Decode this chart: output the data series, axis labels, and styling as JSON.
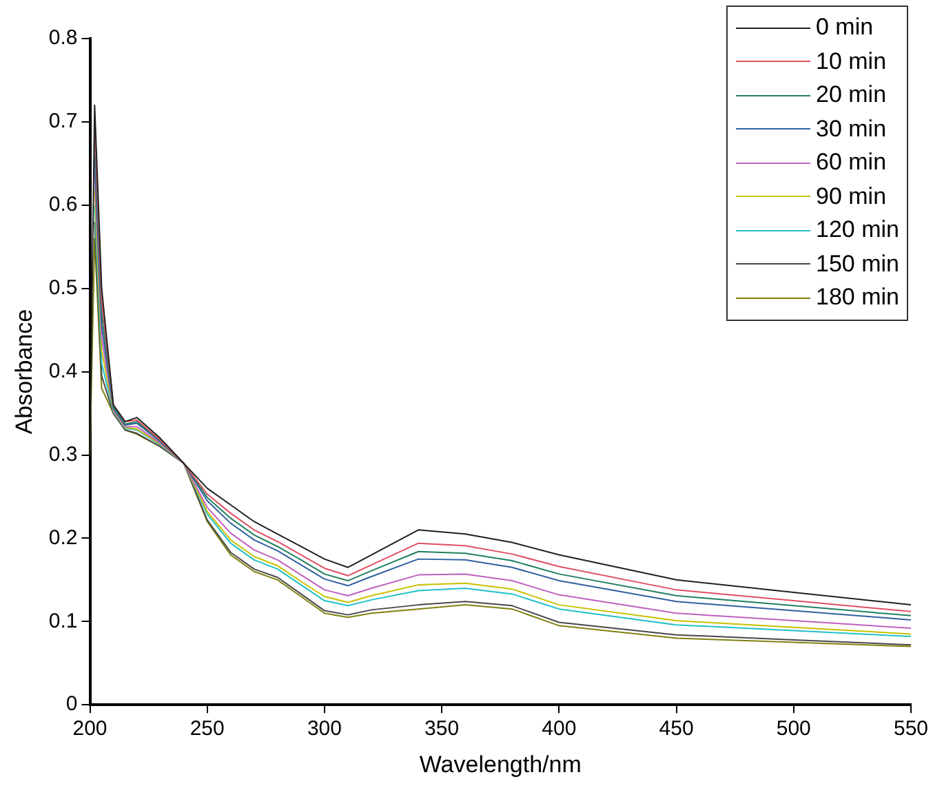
{
  "chart_data": {
    "type": "line",
    "xlabel": "Wavelength/nm",
    "ylabel": "Absorbance",
    "x": [
      200,
      202,
      205,
      210,
      215,
      220,
      230,
      240,
      250,
      260,
      270,
      280,
      290,
      300,
      310,
      320,
      340,
      360,
      380,
      400,
      450,
      500,
      550
    ],
    "xlim": [
      200,
      550
    ],
    "xticks": [
      200,
      250,
      300,
      350,
      400,
      450,
      500,
      550
    ],
    "ylim": [
      0,
      0.8
    ],
    "yticks": [
      0,
      0.1,
      0.2,
      0.3,
      0.4,
      0.5,
      0.6,
      0.7,
      0.8
    ],
    "grid": false,
    "legend": "top right",
    "marker": "none",
    "line_style": "solid",
    "series": [
      {
        "name": "0 min",
        "color": "#202020",
        "values": [
          0.3,
          0.72,
          0.5,
          0.36,
          0.34,
          0.345,
          0.32,
          0.29,
          0.26,
          0.24,
          0.22,
          0.205,
          0.19,
          0.175,
          0.165,
          0.18,
          0.21,
          0.205,
          0.195,
          0.18,
          0.15,
          0.135,
          0.12
        ]
      },
      {
        "name": "10 min",
        "color": "#e05060",
        "values": [
          null,
          0.7,
          0.485,
          0.36,
          0.34,
          0.342,
          0.318,
          0.29,
          0.253,
          0.23,
          0.21,
          0.196,
          0.18,
          0.164,
          0.155,
          0.168,
          0.194,
          0.191,
          0.181,
          0.166,
          0.138,
          0.125,
          0.112
        ]
      },
      {
        "name": "20 min",
        "color": "#208060",
        "values": [
          null,
          0.68,
          0.47,
          0.357,
          0.337,
          0.34,
          0.317,
          0.29,
          0.249,
          0.224,
          0.204,
          0.19,
          0.174,
          0.157,
          0.149,
          0.161,
          0.184,
          0.182,
          0.173,
          0.157,
          0.131,
          0.119,
          0.107
        ]
      },
      {
        "name": "30 min",
        "color": "#3060a0",
        "values": [
          null,
          0.66,
          0.455,
          0.356,
          0.336,
          0.338,
          0.316,
          0.29,
          0.245,
          0.218,
          0.198,
          0.185,
          0.168,
          0.151,
          0.143,
          0.154,
          0.175,
          0.174,
          0.165,
          0.149,
          0.124,
          0.113,
          0.102
        ]
      },
      {
        "name": "60 min",
        "color": "#c060c0",
        "values": [
          null,
          0.64,
          0.44,
          0.354,
          0.334,
          0.334,
          0.314,
          0.29,
          0.237,
          0.206,
          0.186,
          0.174,
          0.156,
          0.138,
          0.131,
          0.14,
          0.156,
          0.157,
          0.149,
          0.132,
          0.11,
          0.101,
          0.092
        ]
      },
      {
        "name": "90 min",
        "color": "#c8c000",
        "values": [
          null,
          0.62,
          0.425,
          0.353,
          0.333,
          0.331,
          0.313,
          0.29,
          0.232,
          0.198,
          0.178,
          0.167,
          0.148,
          0.13,
          0.123,
          0.131,
          0.144,
          0.146,
          0.139,
          0.12,
          0.101,
          0.093,
          0.085
        ]
      },
      {
        "name": "120 min",
        "color": "#20c0c8",
        "values": [
          null,
          0.6,
          0.41,
          0.352,
          0.332,
          0.33,
          0.312,
          0.29,
          0.229,
          0.194,
          0.174,
          0.163,
          0.144,
          0.125,
          0.119,
          0.126,
          0.137,
          0.14,
          0.133,
          0.115,
          0.096,
          0.089,
          0.082
        ]
      },
      {
        "name": "150 min",
        "color": "#484848",
        "values": [
          null,
          0.58,
          0.395,
          0.35,
          0.33,
          0.326,
          0.31,
          0.29,
          0.222,
          0.183,
          0.163,
          0.153,
          0.133,
          0.113,
          0.108,
          0.114,
          0.12,
          0.124,
          0.119,
          0.099,
          0.084,
          0.078,
          0.072
        ]
      },
      {
        "name": "180 min",
        "color": "#808010",
        "values": [
          0.3,
          0.56,
          0.38,
          0.35,
          0.33,
          0.325,
          0.31,
          0.29,
          0.22,
          0.18,
          0.16,
          0.15,
          0.13,
          0.11,
          0.105,
          0.11,
          0.115,
          0.12,
          0.115,
          0.095,
          0.08,
          0.075,
          0.07
        ]
      }
    ]
  }
}
